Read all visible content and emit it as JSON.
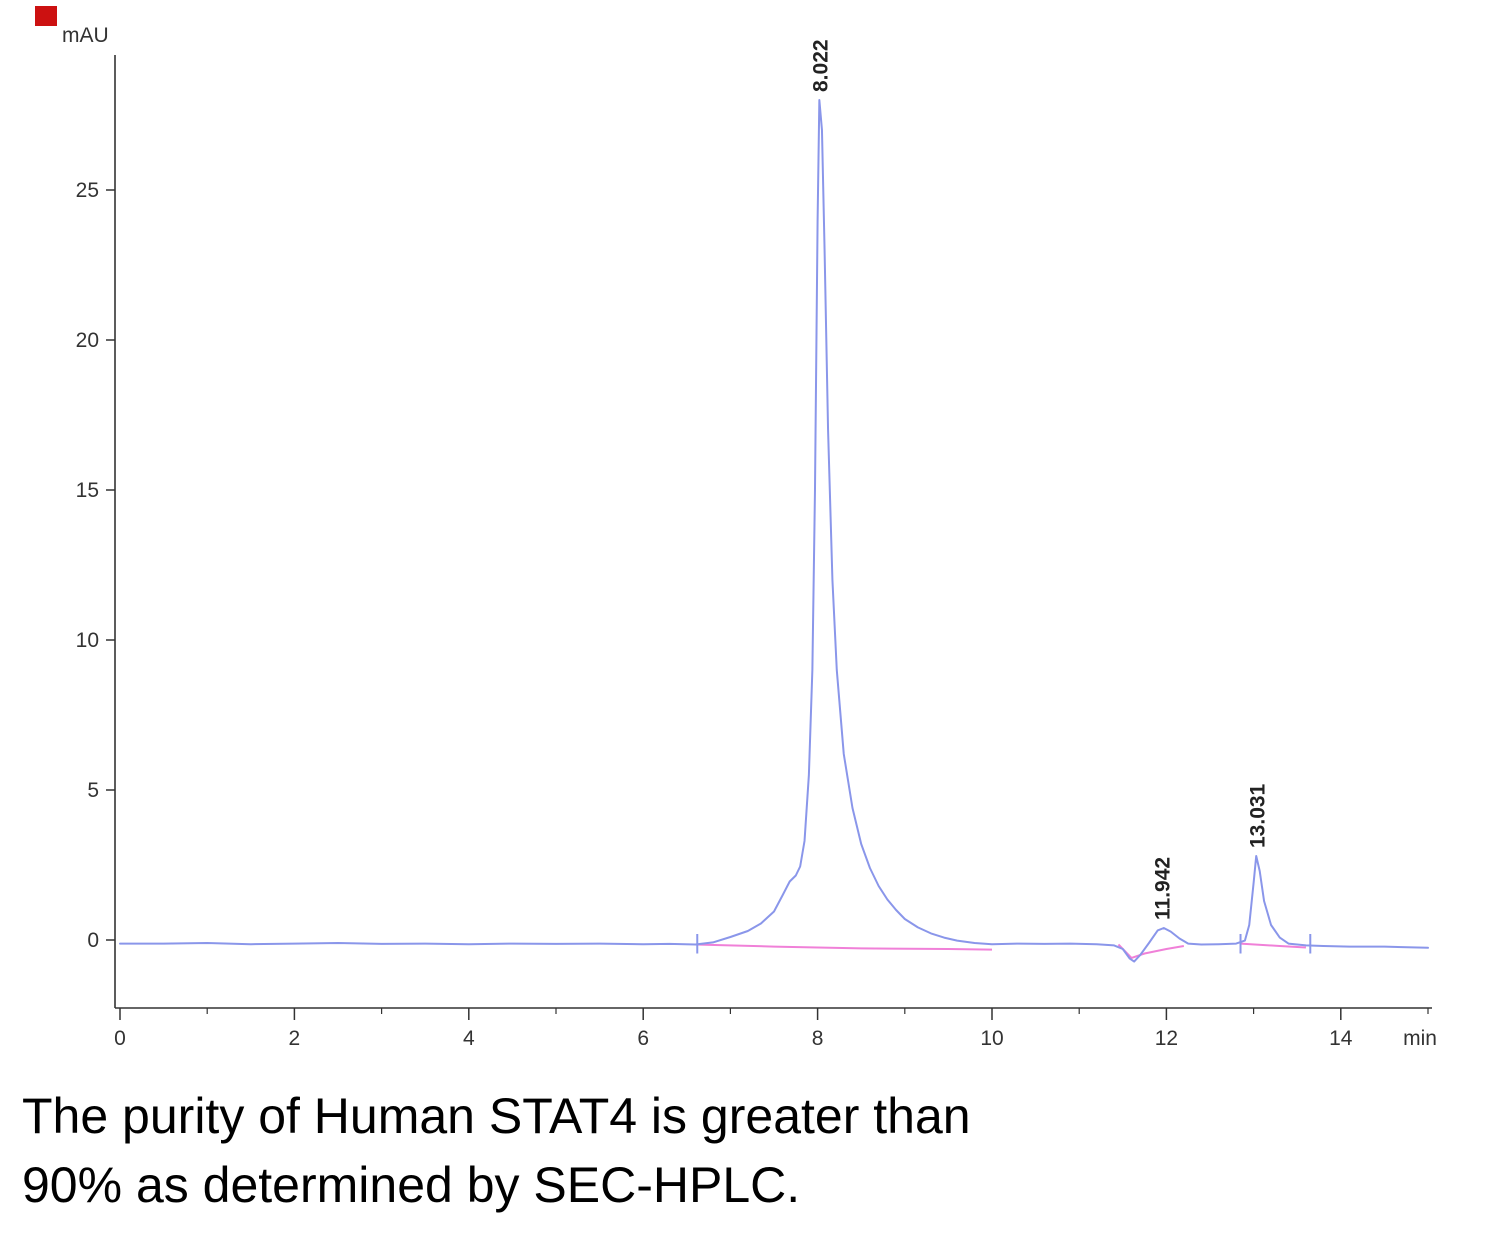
{
  "page": {
    "background": "#ffffff"
  },
  "corner_mark": {
    "color": "#cc1111"
  },
  "caption": {
    "line1": "The purity of Human STAT4 is greater than",
    "line2": "90% as determined by SEC-HPLC."
  },
  "chart_data": {
    "type": "line",
    "title": "",
    "xlabel": "min",
    "ylabel": "mAU",
    "xlim": [
      0,
      15.05
    ],
    "ylim": [
      -2.3,
      29.5
    ],
    "x_ticks_major": [
      0,
      2,
      4,
      6,
      8,
      10,
      12,
      14
    ],
    "x_ticks_minor": [
      1,
      3,
      5,
      7,
      9,
      11,
      13,
      15
    ],
    "y_ticks": [
      0,
      5,
      10,
      15,
      20,
      25
    ],
    "grid": false,
    "legend": "none",
    "trace_color": "#8a96ea",
    "baseline_color": "#f080d8",
    "axis_color": "#333333",
    "label_color": "#333333",
    "peaks": [
      {
        "label": "8.022",
        "rt": 8.022,
        "apex_mAU": 28.0
      },
      {
        "label": "11.942",
        "rt": 11.942,
        "apex_mAU": 0.4
      },
      {
        "label": "13.031",
        "rt": 13.031,
        "apex_mAU": 2.8
      }
    ],
    "integration_markers": [
      6.62,
      12.85,
      13.65
    ],
    "series": [
      {
        "name": "UV absorbance trace",
        "color": "#8a96ea",
        "points": [
          [
            0,
            -0.12
          ],
          [
            0.5,
            -0.12
          ],
          [
            1,
            -0.1
          ],
          [
            1.5,
            -0.14
          ],
          [
            2,
            -0.12
          ],
          [
            2.5,
            -0.1
          ],
          [
            3,
            -0.13
          ],
          [
            3.5,
            -0.12
          ],
          [
            4,
            -0.14
          ],
          [
            4.5,
            -0.12
          ],
          [
            5,
            -0.13
          ],
          [
            5.5,
            -0.12
          ],
          [
            6,
            -0.14
          ],
          [
            6.3,
            -0.13
          ],
          [
            6.6,
            -0.15
          ],
          [
            6.8,
            -0.08
          ],
          [
            7.0,
            0.1
          ],
          [
            7.2,
            0.3
          ],
          [
            7.35,
            0.55
          ],
          [
            7.5,
            0.95
          ],
          [
            7.6,
            1.5
          ],
          [
            7.68,
            1.95
          ],
          [
            7.75,
            2.15
          ],
          [
            7.8,
            2.45
          ],
          [
            7.85,
            3.3
          ],
          [
            7.9,
            5.5
          ],
          [
            7.94,
            9
          ],
          [
            7.97,
            15
          ],
          [
            8.0,
            24
          ],
          [
            8.02,
            28
          ],
          [
            8.05,
            27
          ],
          [
            8.08,
            23
          ],
          [
            8.12,
            17
          ],
          [
            8.17,
            12
          ],
          [
            8.22,
            9
          ],
          [
            8.3,
            6.2
          ],
          [
            8.4,
            4.4
          ],
          [
            8.5,
            3.2
          ],
          [
            8.6,
            2.4
          ],
          [
            8.7,
            1.8
          ],
          [
            8.8,
            1.35
          ],
          [
            8.9,
            1.0
          ],
          [
            9.0,
            0.7
          ],
          [
            9.15,
            0.42
          ],
          [
            9.3,
            0.22
          ],
          [
            9.45,
            0.08
          ],
          [
            9.6,
            -0.02
          ],
          [
            9.8,
            -0.1
          ],
          [
            10,
            -0.14
          ],
          [
            10.3,
            -0.12
          ],
          [
            10.6,
            -0.13
          ],
          [
            10.9,
            -0.12
          ],
          [
            11.2,
            -0.14
          ],
          [
            11.4,
            -0.18
          ],
          [
            11.5,
            -0.3
          ],
          [
            11.58,
            -0.62
          ],
          [
            11.63,
            -0.72
          ],
          [
            11.7,
            -0.5
          ],
          [
            11.8,
            -0.1
          ],
          [
            11.9,
            0.32
          ],
          [
            11.97,
            0.4
          ],
          [
            12.05,
            0.28
          ],
          [
            12.15,
            0.05
          ],
          [
            12.25,
            -0.12
          ],
          [
            12.4,
            -0.15
          ],
          [
            12.6,
            -0.14
          ],
          [
            12.8,
            -0.12
          ],
          [
            12.9,
            -0.02
          ],
          [
            12.95,
            0.5
          ],
          [
            13.0,
            1.9
          ],
          [
            13.03,
            2.8
          ],
          [
            13.07,
            2.3
          ],
          [
            13.12,
            1.3
          ],
          [
            13.2,
            0.5
          ],
          [
            13.3,
            0.08
          ],
          [
            13.4,
            -0.12
          ],
          [
            13.6,
            -0.18
          ],
          [
            13.8,
            -0.2
          ],
          [
            14.1,
            -0.22
          ],
          [
            14.5,
            -0.22
          ],
          [
            15,
            -0.26
          ]
        ]
      }
    ],
    "baseline_segments": [
      [
        [
          6.6,
          -0.15
        ],
        [
          7.5,
          -0.22
        ],
        [
          8.5,
          -0.28
        ],
        [
          9.5,
          -0.3
        ],
        [
          10.0,
          -0.32
        ]
      ],
      [
        [
          11.45,
          -0.15
        ],
        [
          11.6,
          -0.6
        ],
        [
          11.75,
          -0.45
        ],
        [
          12.0,
          -0.3
        ],
        [
          12.2,
          -0.2
        ]
      ],
      [
        [
          12.85,
          -0.12
        ],
        [
          13.3,
          -0.2
        ],
        [
          13.6,
          -0.25
        ]
      ]
    ]
  }
}
